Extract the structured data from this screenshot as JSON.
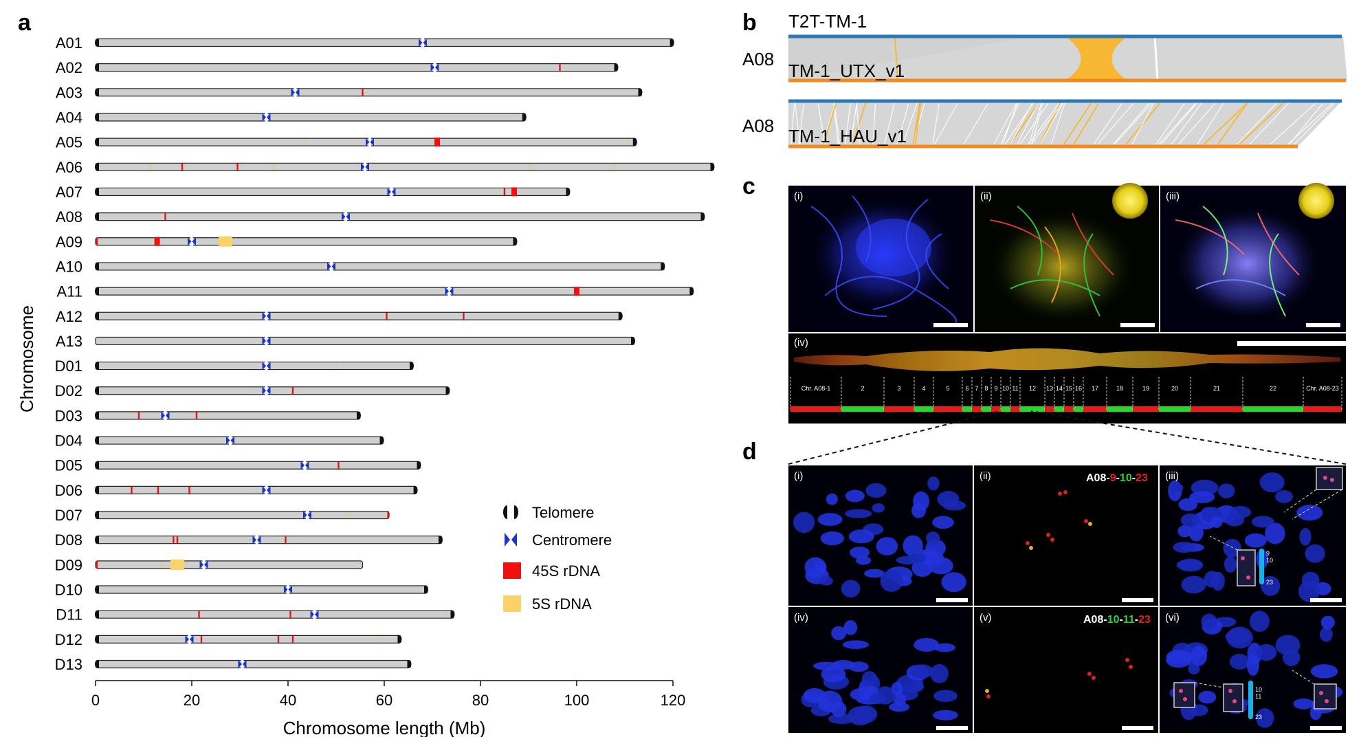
{
  "panels": {
    "a": "a",
    "b": "b",
    "c": "c",
    "d": "d"
  },
  "chart_data": {
    "type": "ideogram",
    "ylabel": "Chromosome",
    "xlabel": "Chromosome length (Mb)",
    "xlim": [
      0,
      120
    ],
    "xticks": [
      0,
      20,
      40,
      60,
      80,
      100,
      120
    ],
    "legend": {
      "placement": "bottom-right",
      "items": [
        {
          "key": "telomere",
          "label": "Telomere"
        },
        {
          "key": "centromere",
          "label": "Centromere"
        },
        {
          "key": "rdna45",
          "label": "45S rDNA",
          "color": "#ee1111"
        },
        {
          "key": "rdna5",
          "label": "5S rDNA",
          "color": "#f9d36a"
        }
      ]
    },
    "colors": {
      "bar": "#cfcfcf",
      "outline": "#222222",
      "telomere": "#111111",
      "centromere": "#1a33cc",
      "rdna45": "#ee1111",
      "rdna5": "#f9d36a",
      "rdna5_line": "#f4c27a"
    },
    "chromosomes": [
      {
        "name": "A01",
        "length": 120.1,
        "cen": 68.0,
        "tel": "both",
        "r45": [],
        "r45b": [],
        "r5": [],
        "r5b": []
      },
      {
        "name": "A02",
        "length": 108.5,
        "cen": 70.5,
        "tel": "both",
        "r45": [
          96.5
        ],
        "r45b": [],
        "r5": [],
        "r5b": []
      },
      {
        "name": "A03",
        "length": 113.5,
        "cen": 41.5,
        "tel": "both",
        "r45": [
          55.5
        ],
        "r45b": [],
        "r5": [],
        "r5b": []
      },
      {
        "name": "A04",
        "length": 89.4,
        "cen": 35.5,
        "tel": "both",
        "r45": [],
        "r45b": [],
        "r5": [],
        "r5b": []
      },
      {
        "name": "A05",
        "length": 112.4,
        "cen": 57.0,
        "tel": "both",
        "r45": [],
        "r45b": [
          71.0
        ],
        "r5": [
          43.5,
          110.5
        ],
        "r5b": []
      },
      {
        "name": "A06",
        "length": 128.5,
        "cen": 56.0,
        "tel": "both",
        "r45": [
          18.0,
          29.5
        ],
        "r45b": [],
        "r5": [
          11.5,
          37.0,
          90.5,
          107.5
        ],
        "r5b": []
      },
      {
        "name": "A07",
        "length": 98.5,
        "cen": 61.5,
        "tel": "both",
        "r45": [
          85.0
        ],
        "r45b": [
          87.0
        ],
        "r5": [],
        "r5b": []
      },
      {
        "name": "A08",
        "length": 126.5,
        "cen": 52.0,
        "tel": "both",
        "r45": [
          14.5
        ],
        "r45b": [],
        "r5": [],
        "r5b": []
      },
      {
        "name": "A09",
        "length": 87.5,
        "cen": 20.0,
        "tel": "right",
        "r45": [
          0.3
        ],
        "r45b": [
          12.8
        ],
        "r5": [],
        "r5b": [
          27.0
        ]
      },
      {
        "name": "A10",
        "length": 118.2,
        "cen": 49.0,
        "tel": "both",
        "r45": [],
        "r45b": [],
        "r5": [],
        "r5b": []
      },
      {
        "name": "A11",
        "length": 124.2,
        "cen": 73.5,
        "tel": "both",
        "r45": [],
        "r45b": [
          100.0
        ],
        "r5": [],
        "r5b": []
      },
      {
        "name": "A12",
        "length": 109.4,
        "cen": 35.5,
        "tel": "both",
        "r45": [
          60.5,
          76.5
        ],
        "r45b": [],
        "r5": [],
        "r5b": []
      },
      {
        "name": "A13",
        "length": 112.0,
        "cen": 35.5,
        "tel": "right",
        "r45": [],
        "r45b": [],
        "r5": [],
        "r5b": []
      },
      {
        "name": "D01",
        "length": 66.0,
        "cen": 35.5,
        "tel": "both",
        "r45": [],
        "r45b": [],
        "r5": [
          50.0
        ],
        "r5b": []
      },
      {
        "name": "D02",
        "length": 73.5,
        "cen": 35.5,
        "tel": "both",
        "r45": [
          41.0
        ],
        "r45b": [],
        "r5": [],
        "r5b": []
      },
      {
        "name": "D03",
        "length": 55.0,
        "cen": 14.5,
        "tel": "both",
        "r45": [
          9.0,
          21.0
        ],
        "r45b": [],
        "r5": [],
        "r5b": []
      },
      {
        "name": "D04",
        "length": 59.8,
        "cen": 28.0,
        "tel": "both",
        "r45": [],
        "r45b": [],
        "r5": [],
        "r5b": []
      },
      {
        "name": "D05",
        "length": 67.5,
        "cen": 43.5,
        "tel": "both",
        "r45": [
          50.5
        ],
        "r45b": [],
        "r5": [],
        "r5b": []
      },
      {
        "name": "D06",
        "length": 66.8,
        "cen": 35.5,
        "tel": "both",
        "r45": [
          7.5,
          13.0,
          19.5
        ],
        "r45b": [],
        "r5": [],
        "r5b": []
      },
      {
        "name": "D07",
        "length": 61.0,
        "cen": 44.0,
        "tel": "left",
        "r45": [
          60.8
        ],
        "r45b": [],
        "r5": [
          53.0
        ],
        "r5b": []
      },
      {
        "name": "D08",
        "length": 72.0,
        "cen": 33.5,
        "tel": "both",
        "r45": [
          16.2,
          17.0,
          39.5
        ],
        "r45b": [],
        "r5": [],
        "r5b": []
      },
      {
        "name": "D09",
        "length": 55.5,
        "cen": 22.5,
        "tel": "none",
        "r45": [
          0.3
        ],
        "r45b": [],
        "r5": [
          13.8
        ],
        "r5b": [
          17.0
        ]
      },
      {
        "name": "D10",
        "length": 69.0,
        "cen": 40.0,
        "tel": "both",
        "r45": [],
        "r45b": [],
        "r5": [],
        "r5b": []
      },
      {
        "name": "D11",
        "length": 74.5,
        "cen": 45.5,
        "tel": "both",
        "r45": [
          21.5,
          40.5
        ],
        "r45b": [],
        "r5": [],
        "r5b": []
      },
      {
        "name": "D12",
        "length": 63.5,
        "cen": 19.5,
        "tel": "both",
        "r45": [
          22.0,
          38.0,
          41.0
        ],
        "r45b": [],
        "r5": [
          59.5
        ],
        "r5b": []
      },
      {
        "name": "D13",
        "length": 65.5,
        "cen": 30.5,
        "tel": "both",
        "r45": [],
        "r45b": [],
        "r5": [],
        "r5b": []
      }
    ]
  },
  "panel_b": {
    "top_label": "T2T-TM-1",
    "row_label": "A08",
    "utx_label": "TM-1_UTX_v1",
    "row2_label": "A08",
    "hau_label": "TM-1_HAU_v1",
    "colors": {
      "reference": "#2b78b5",
      "query": "#f28a1e",
      "collinear": "#d6d6d6",
      "inversion": "#f7b733"
    }
  },
  "panel_c": {
    "sub_i": "(i)",
    "sub_ii": "(ii)",
    "sub_iii": "(iii)",
    "sub_iv": "(iv)",
    "segments": [
      "Chr. A08-1",
      "2",
      "3",
      "4",
      "5",
      "6",
      "7",
      "8",
      "9",
      "10",
      "11",
      "12",
      "13",
      "14",
      "15",
      "16",
      "17",
      "18",
      "19",
      "20",
      "21",
      "22",
      "Chr. A08-23"
    ]
  },
  "panel_d": {
    "sub_i": "(i)",
    "sub_ii": "(ii)",
    "sub_iii": "(iii)",
    "sub_iv": "(iv)",
    "sub_v": "(v)",
    "sub_vi": "(vi)",
    "probe1_prefix": "A08-",
    "probe1_a": "9",
    "probe1_sep1": "-",
    "probe1_b": "10",
    "probe1_sep2": "-",
    "probe1_c": "23",
    "probe2_prefix": "A08-",
    "probe2_a": "10",
    "probe2_sep1": "-",
    "probe2_b": "11",
    "probe2_sep2": "-",
    "probe2_c": "23",
    "inset1_top": "9",
    "inset1_mid": "10",
    "inset1_bot": "23",
    "inset2_top": "10",
    "inset2_mid": "11",
    "inset2_bot": "23"
  }
}
